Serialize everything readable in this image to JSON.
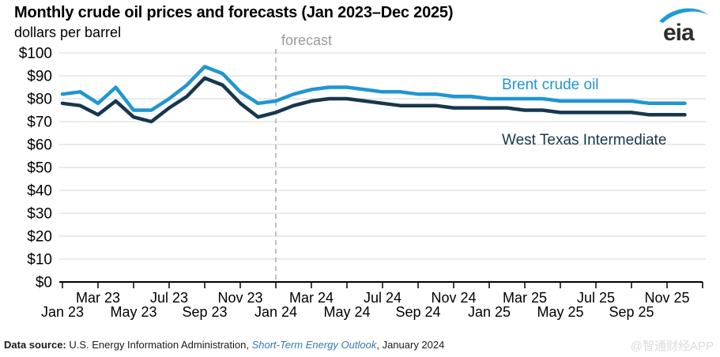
{
  "header": {
    "title": "Monthly crude oil prices and forecasts (Jan 2023–Dec 2025)",
    "subtitle": "dollars per barrel"
  },
  "logo": {
    "text": "eia"
  },
  "chart_data": {
    "type": "line",
    "title": "Monthly crude oil prices and forecasts (Jan 2023–Dec 2025)",
    "xlabel": "",
    "ylabel": "dollars per barrel",
    "ylim": [
      0,
      100
    ],
    "y_tick_step": 10,
    "y_tick_prefix": "$",
    "grid": true,
    "legend_position": "inline-right",
    "forecast_label": "forecast",
    "forecast_start_index": 12,
    "x_tick_labels": [
      "Jan 23",
      "Mar 23",
      "May 23",
      "Jul 23",
      "Sep 23",
      "Nov 23",
      "Jan 24",
      "Mar 24",
      "May 24",
      "Jul 24",
      "Sep 24",
      "Nov 24",
      "Jan 25",
      "Mar 25",
      "May 25",
      "Jul 25",
      "Sep 25",
      "Nov 25"
    ],
    "months": [
      "Jan 23",
      "Feb 23",
      "Mar 23",
      "Apr 23",
      "May 23",
      "Jun 23",
      "Jul 23",
      "Aug 23",
      "Sep 23",
      "Oct 23",
      "Nov 23",
      "Dec 23",
      "Jan 24",
      "Feb 24",
      "Mar 24",
      "Apr 24",
      "May 24",
      "Jun 24",
      "Jul 24",
      "Aug 24",
      "Sep 24",
      "Oct 24",
      "Nov 24",
      "Dec 24",
      "Jan 25",
      "Feb 25",
      "Mar 25",
      "Apr 25",
      "May 25",
      "Jun 25",
      "Jul 25",
      "Aug 25",
      "Sep 25",
      "Oct 25",
      "Nov 25",
      "Dec 25"
    ],
    "series": [
      {
        "name": "Brent crude oil",
        "color": "#1f96d2",
        "values": [
          82,
          83,
          78,
          85,
          75,
          75,
          80,
          86,
          94,
          91,
          83,
          78,
          79,
          82,
          84,
          85,
          85,
          84,
          83,
          83,
          82,
          82,
          81,
          81,
          80,
          80,
          80,
          80,
          79,
          79,
          79,
          79,
          79,
          78,
          78,
          78
        ]
      },
      {
        "name": "West Texas Intermediate",
        "color": "#17374e",
        "values": [
          78,
          77,
          73,
          79,
          72,
          70,
          76,
          81,
          89,
          86,
          78,
          72,
          74,
          77,
          79,
          80,
          80,
          79,
          78,
          77,
          77,
          77,
          76,
          76,
          76,
          76,
          75,
          75,
          74,
          74,
          74,
          74,
          74,
          73,
          73,
          73
        ]
      }
    ]
  },
  "footer": {
    "label": "Data source:",
    "text_before_link": " U.S. Energy Information Administration, ",
    "link": "Short-Term Energy Outlook",
    "text_after_link": ", January 2024"
  },
  "watermark": "@智通财经APP",
  "colors": {
    "grid": "#d6d6d6",
    "axis": "#000000",
    "forecast_line": "#a9a9a9",
    "forecast_text": "#9b9b9b",
    "link": "#3679b5",
    "logo_swoosh": "#1e9cd7",
    "logo_text": "#2d2d2d"
  }
}
